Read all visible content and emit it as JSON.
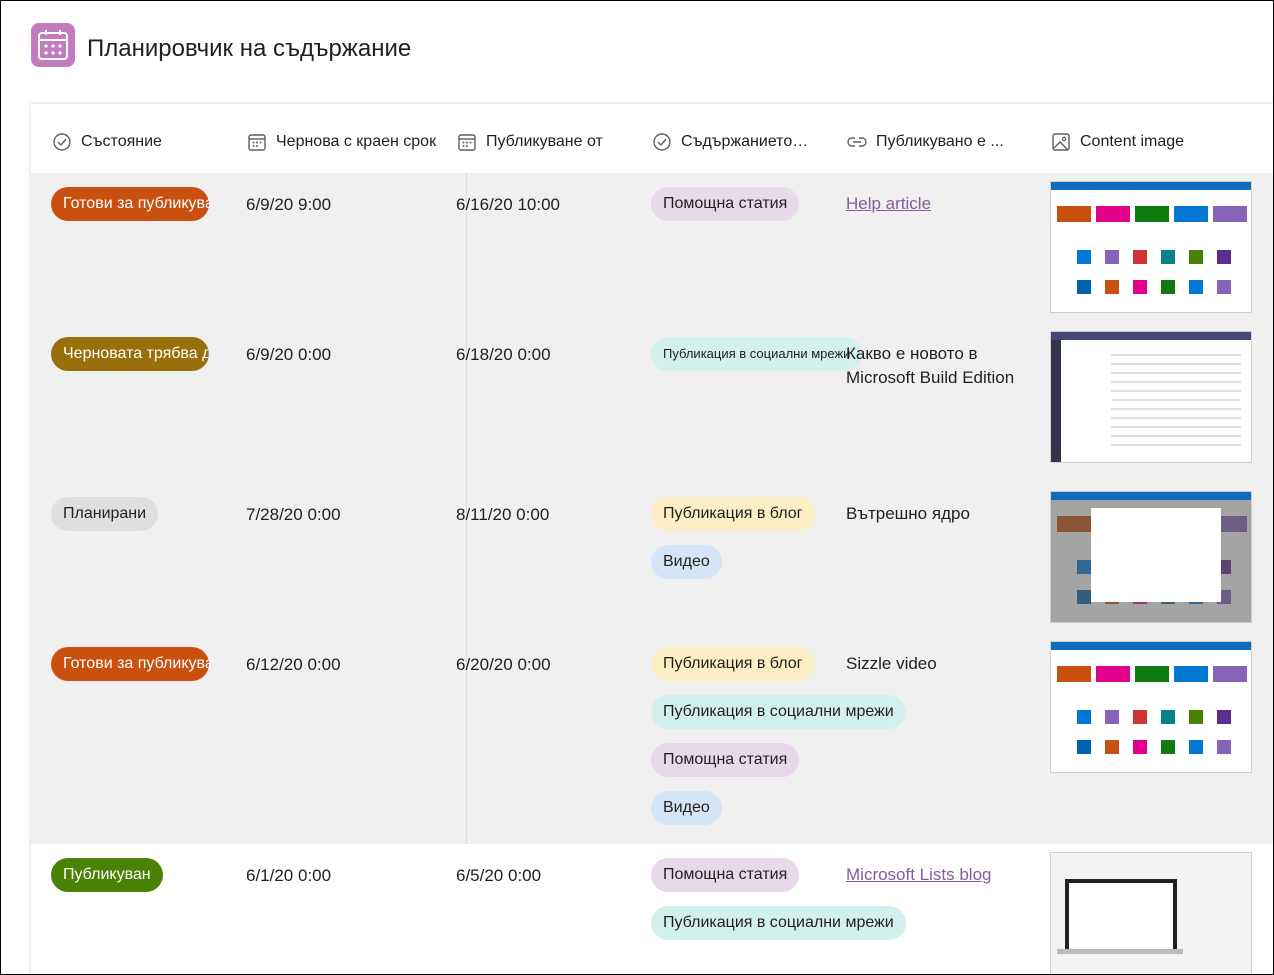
{
  "header": {
    "title": "Планировчик на съдържание"
  },
  "table": {
    "columns": [
      "Състояние",
      "Чернова с краен срок",
      "Публикуване от",
      "Съдържанието…",
      "Публикувано е ...",
      "Content image"
    ],
    "rows": [
      {
        "status": {
          "label": "Готови за публикуване",
          "color": "#ca5010"
        },
        "draft": "6/9/20 9:00",
        "publish": "6/16/20 10:00",
        "content": [
          {
            "label": "Помощна статия",
            "color": "#e8d9ea"
          }
        ],
        "link": {
          "text": "Help article",
          "is_link": true
        }
      },
      {
        "status": {
          "label": "Черновата трябва да",
          "color": "#986f0b"
        },
        "draft": "6/9/20 0:00",
        "publish": "6/18/20 0:00",
        "content": [
          {
            "label": "Публикация в социални мрежи",
            "color": "#d3f1ec"
          }
        ],
        "link": {
          "text": "Какво е новото в Microsoft Build Edition",
          "is_link": false
        }
      },
      {
        "status": {
          "label": "Планирани",
          "color": "#e1dfdd"
        },
        "draft": "7/28/20 0:00",
        "publish": "8/11/20 0:00",
        "content": [
          {
            "label": "Публикация в блог",
            "color": "#fdeec4"
          },
          {
            "label": "Видео",
            "color": "#d4e5f7"
          }
        ],
        "link": {
          "text": "Вътрешно ядро",
          "is_link": false
        }
      },
      {
        "status": {
          "label": "Готови за публикуване",
          "color": "#ca5010"
        },
        "draft": "6/12/20 0:00",
        "publish": "6/20/20 0:00",
        "content": [
          {
            "label": "Публикация в блог",
            "color": "#fdeec4"
          },
          {
            "label": "Публикация в социални мрежи",
            "color": "#d3f1ec"
          },
          {
            "label": "Помощна статия",
            "color": "#e8d9ea"
          },
          {
            "label": "Видео",
            "color": "#d4e5f7"
          }
        ],
        "link": {
          "text": "Sizzle video",
          "is_link": false
        }
      },
      {
        "status": {
          "label": "Публикуван",
          "color": "#498205"
        },
        "draft": "6/1/20 0:00",
        "publish": "6/5/20 0:00",
        "content": [
          {
            "label": "Помощна статия",
            "color": "#e8d9ea"
          },
          {
            "label": "Публикация в социални мрежи",
            "color": "#d3f1ec"
          }
        ],
        "link": {
          "text": "Microsoft Lists blog",
          "is_link": true
        }
      }
    ]
  }
}
